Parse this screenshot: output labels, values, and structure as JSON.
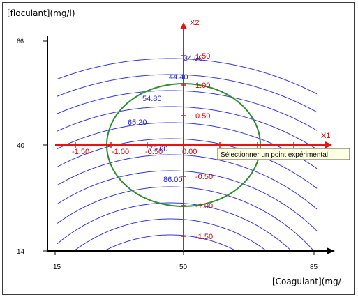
{
  "chart_data": {
    "type": "contour",
    "ylabel": "[floculant](mg/l)",
    "xlabel": "[Coagulant](mg/",
    "x_ticks": [
      "15",
      "50",
      "85"
    ],
    "y_ticks": [
      "66",
      "40",
      "14"
    ],
    "x_range": [
      15,
      85
    ],
    "y_range": [
      14,
      66
    ],
    "coded_axes": {
      "x_name": "X1",
      "y_name": "X2",
      "x_ticks": [
        "-1.50",
        "-1.00",
        "-0.50",
        "0.00"
      ],
      "y_ticks": [
        "1.50",
        "1.00",
        "0.50",
        "-0.50",
        "-1.00",
        "-1.50"
      ]
    },
    "contour_labels": [
      "34.00",
      "44.40",
      "54.80",
      "65.20",
      "75.60",
      "86.00"
    ],
    "experimental_domain": "circle",
    "colors": {
      "contours": "#3333dd",
      "coded_axes": "#ee1111",
      "domain_circle": "#2e8b2e",
      "contour_labels": "#2222cc",
      "coded_labels": "#dd0000"
    }
  },
  "tooltip": {
    "text": "Sélectionner un point expérimental"
  }
}
